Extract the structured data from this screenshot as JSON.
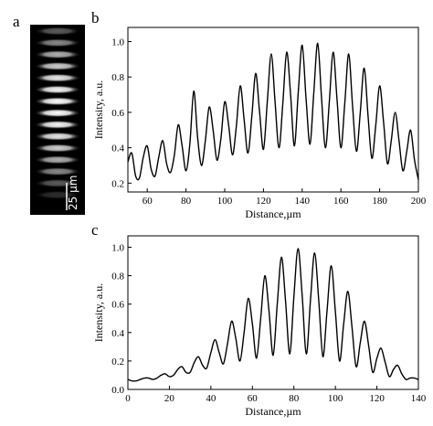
{
  "panels": {
    "a": "a",
    "b": "b",
    "c": "c"
  },
  "scale_bar_label": "25 µm",
  "chart_data": [
    {
      "type": "line",
      "panel": "b",
      "xlabel": "Distance,µm",
      "ylabel": "Intensity, a.u.",
      "xlim": [
        50,
        200
      ],
      "ylim": [
        0.15,
        1.08
      ],
      "xticks": [
        60,
        80,
        100,
        120,
        140,
        160,
        180,
        200
      ],
      "yticks": [
        0.2,
        0.4,
        0.6,
        0.8,
        1.0
      ],
      "series": [
        {
          "x": [
            50,
            52,
            54,
            56,
            58,
            60,
            62,
            64,
            66,
            68,
            70,
            72,
            74,
            76,
            78,
            80,
            82,
            84,
            86,
            88,
            90,
            92,
            94,
            96,
            98,
            100,
            102,
            104,
            106,
            108,
            110,
            112,
            114,
            116,
            118,
            120,
            122,
            124,
            126,
            128,
            130,
            132,
            134,
            136,
            138,
            140,
            142,
            144,
            146,
            148,
            150,
            152,
            154,
            156,
            158,
            160,
            162,
            164,
            166,
            168,
            170,
            172,
            174,
            176,
            178,
            180,
            182,
            184,
            186,
            188,
            190,
            192,
            194,
            196,
            198,
            200
          ],
          "y": [
            0.32,
            0.37,
            0.24,
            0.23,
            0.35,
            0.41,
            0.28,
            0.24,
            0.35,
            0.44,
            0.31,
            0.26,
            0.36,
            0.53,
            0.41,
            0.27,
            0.42,
            0.72,
            0.46,
            0.3,
            0.44,
            0.63,
            0.5,
            0.33,
            0.45,
            0.66,
            0.53,
            0.36,
            0.52,
            0.75,
            0.56,
            0.37,
            0.58,
            0.82,
            0.6,
            0.39,
            0.66,
            0.93,
            0.66,
            0.4,
            0.65,
            0.94,
            0.7,
            0.41,
            0.72,
            0.98,
            0.68,
            0.42,
            0.71,
            0.99,
            0.68,
            0.4,
            0.66,
            0.94,
            0.67,
            0.4,
            0.65,
            0.93,
            0.64,
            0.38,
            0.6,
            0.85,
            0.58,
            0.34,
            0.53,
            0.75,
            0.55,
            0.31,
            0.44,
            0.6,
            0.44,
            0.27,
            0.38,
            0.5,
            0.33,
            0.22
          ]
        }
      ]
    },
    {
      "type": "line",
      "panel": "c",
      "xlabel": "Distance,µm",
      "ylabel": "Intensity, a.u.",
      "xlim": [
        0,
        140
      ],
      "ylim": [
        0.0,
        1.08
      ],
      "xticks": [
        0,
        20,
        40,
        60,
        80,
        100,
        120,
        140
      ],
      "yticks": [
        0.0,
        0.2,
        0.4,
        0.6,
        0.8,
        1.0
      ],
      "series": [
        {
          "x": [
            0,
            2,
            4,
            6,
            8,
            10,
            12,
            14,
            16,
            18,
            20,
            22,
            24,
            26,
            28,
            30,
            32,
            34,
            36,
            38,
            40,
            42,
            44,
            46,
            48,
            50,
            52,
            54,
            56,
            58,
            60,
            62,
            64,
            66,
            68,
            70,
            72,
            74,
            76,
            78,
            80,
            82,
            84,
            86,
            88,
            90,
            92,
            94,
            96,
            98,
            100,
            102,
            104,
            106,
            108,
            110,
            112,
            114,
            116,
            118,
            120,
            122,
            124,
            126,
            128,
            130,
            132,
            134,
            136,
            138,
            140
          ],
          "y": [
            0.07,
            0.06,
            0.06,
            0.07,
            0.08,
            0.08,
            0.07,
            0.08,
            0.1,
            0.11,
            0.09,
            0.1,
            0.14,
            0.16,
            0.12,
            0.12,
            0.19,
            0.23,
            0.17,
            0.15,
            0.26,
            0.35,
            0.26,
            0.18,
            0.32,
            0.48,
            0.36,
            0.2,
            0.4,
            0.64,
            0.46,
            0.22,
            0.5,
            0.8,
            0.55,
            0.24,
            0.6,
            0.93,
            0.62,
            0.25,
            0.65,
            0.99,
            0.66,
            0.25,
            0.63,
            0.96,
            0.62,
            0.23,
            0.56,
            0.87,
            0.55,
            0.2,
            0.46,
            0.69,
            0.44,
            0.16,
            0.33,
            0.48,
            0.31,
            0.12,
            0.22,
            0.29,
            0.19,
            0.09,
            0.14,
            0.17,
            0.11,
            0.07,
            0.08,
            0.08,
            0.07
          ]
        }
      ]
    }
  ]
}
